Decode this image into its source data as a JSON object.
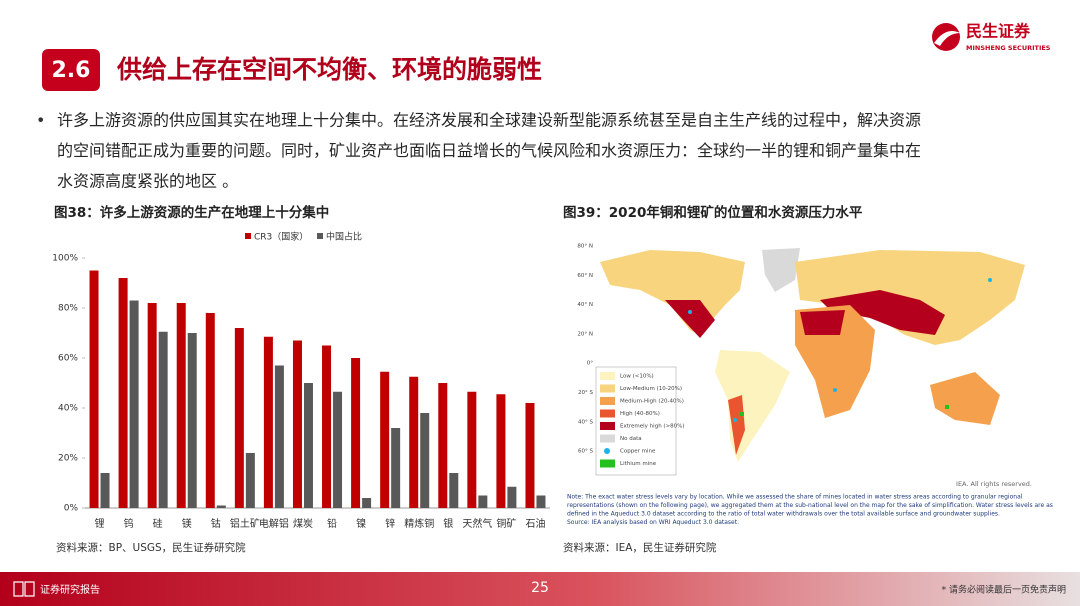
{
  "header": {
    "section": "2.6",
    "title": "供给上存在空间不均衡、环境的脆弱性",
    "logo_cn": "民生证券",
    "logo_en": "MINSHENG SECURITIES"
  },
  "bullet": {
    "lines": [
      "许多上游资源的供应国其实在地理上十分集中。在经济发展和全球建设新型能源系统甚至是自主生产线的过程中，解决资源",
      "的空间错配正成为重要的问题。同时，矿业资产也面临日益增长的气候风险和水资源压力：全球约一半的锂和铜产量集中在",
      "水资源高度紧张的地区 。"
    ]
  },
  "chart_data": {
    "type": "bar",
    "title": "图38：许多上游资源的生产在地理上十分集中",
    "categories": [
      "锂",
      "钨",
      "硅",
      "镁",
      "钴",
      "铝土矿",
      "电解铝",
      "煤炭",
      "铅",
      "镍",
      "锌",
      "精炼铜",
      "银",
      "天然气",
      "铜矿",
      "石油"
    ],
    "series": [
      {
        "name": "CR3（国家）",
        "color": "#c00000",
        "values": [
          95,
          92,
          82,
          82,
          78,
          72,
          68.5,
          67,
          65,
          60,
          54.5,
          52.5,
          50,
          46.5,
          45.5,
          42
        ]
      },
      {
        "name": "中国占比",
        "color": "#595959",
        "values": [
          14,
          83,
          70.5,
          70,
          1,
          22,
          57,
          50,
          46.5,
          4,
          32,
          38,
          14,
          5,
          8.5,
          5
        ]
      }
    ],
    "ylim": [
      0,
      100
    ],
    "yticks": [
      {
        "value": 0,
        "label": "0%"
      },
      {
        "value": 20,
        "label": "20%"
      },
      {
        "value": 40,
        "label": "40%"
      },
      {
        "value": 60,
        "label": "60%"
      },
      {
        "value": 80,
        "label": "80%"
      },
      {
        "value": 100,
        "label": "100%"
      }
    ],
    "legend": "top",
    "source": "资料来源：BP、USGS，民生证券研究院"
  },
  "map": {
    "title": "图39：2020年铜和锂矿的位置和水资源压力水平",
    "lat_labels": [
      "80° N",
      "60° N",
      "40° N",
      "20° N",
      "0°",
      "20° S",
      "40° S",
      "60° S"
    ],
    "legend": [
      {
        "label": "Low (<10%)",
        "color": "#fdf3bf"
      },
      {
        "label": "Low-Medium (10-20%)",
        "color": "#f8d47e"
      },
      {
        "label": "Medium-High (20-40%)",
        "color": "#f5a04c"
      },
      {
        "label": "High (40-80%)",
        "color": "#e8552f"
      },
      {
        "label": "Extremely high (>80%)",
        "color": "#b4001c"
      },
      {
        "label": "No data",
        "color": "#d9d9d9"
      },
      {
        "label": "Copper mine",
        "color": "#1bb3e6"
      },
      {
        "label": "Lithium mine",
        "color": "#22c11e"
      }
    ],
    "credit": "IEA. All rights reserved.",
    "note": [
      "Note: The exact water stress levels vary by location. While we assessed the share of mines located in water stress areas according to granular regional",
      "representations (shown on the following page), we aggregated them at the sub-national level on the map for the sake of simplification. Water stress levels are as",
      "defined in the Aqueduct 3.0 dataset according to the ratio of total water withdrawals over the total available surface and groundwater supplies.",
      "Source: IEA analysis based on WRI Aqueduct 3.0 dataset."
    ],
    "source": "资料来源：IEA，民生证券研究院"
  },
  "footer": {
    "label": "证券研究报告",
    "page": "25",
    "disclaimer": "* 请务必阅读最后一页免责声明"
  }
}
